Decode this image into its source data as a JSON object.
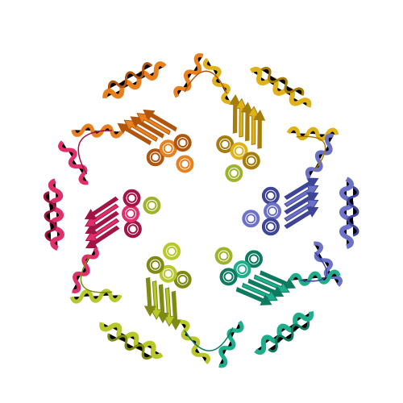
{
  "image": {
    "subject": "hexameric-protein-ring",
    "subunit_count": 6,
    "subunits": [
      {
        "name": "orange",
        "color": "#e8801e",
        "dark": "#b2550c"
      },
      {
        "name": "gold",
        "color": "#e0b21a",
        "dark": "#a67d0a"
      },
      {
        "name": "slate-blue",
        "color": "#6c72c8",
        "dark": "#3e4596"
      },
      {
        "name": "teal",
        "color": "#1fae8c",
        "dark": "#0e7a60"
      },
      {
        "name": "yellow-green",
        "color": "#b8c72a",
        "dark": "#7e8a12"
      },
      {
        "name": "magenta",
        "color": "#e0306a",
        "dark": "#a21444"
      }
    ],
    "inner_olive": {
      "color": "#9fb32a",
      "dark": "#6d7d10"
    },
    "background": "#ffffff"
  }
}
